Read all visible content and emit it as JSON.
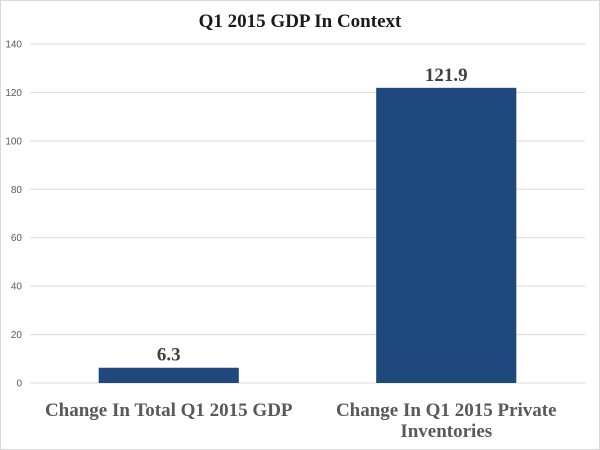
{
  "chart_data": {
    "type": "bar",
    "title": "Q1 2015 GDP In Context",
    "xlabel": "",
    "ylabel": "",
    "categories": [
      [
        "Change In Total Q1 2015 GDP"
      ],
      [
        "Change In Q1 2015  Private",
        "Inventories"
      ]
    ],
    "values": [
      6.3,
      121.9
    ],
    "data_labels": [
      "6.3",
      "121.9"
    ],
    "ylim": [
      0,
      140
    ],
    "yticks": [
      0,
      20,
      40,
      60,
      80,
      100,
      120,
      140
    ],
    "grid": true,
    "legend": "none",
    "bar_color": "#1f497d"
  }
}
